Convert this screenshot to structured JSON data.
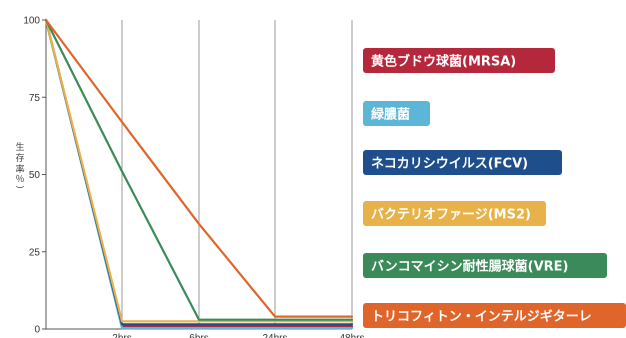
{
  "chart_data": {
    "type": "line",
    "title": "",
    "ylabel": "生存率(％)",
    "xlabel": "",
    "ylim": [
      0,
      100
    ],
    "yticks": [
      0,
      25,
      50,
      75,
      100
    ],
    "x": [
      "0",
      "2hrs",
      "6hrs",
      "24hrs",
      "48hrs"
    ],
    "x_tick_labels": [
      "2hrs",
      "6hrs",
      "24hrs",
      "48hrs"
    ],
    "grid": "vertical",
    "legend_position": "right",
    "series": [
      {
        "name": "黄色ブドウ球菌(MRSA)",
        "color": "#b5283c",
        "values": [
          100,
          0.8,
          0.8,
          0.8,
          0.8
        ]
      },
      {
        "name": "緑膿菌",
        "color": "#5bb6d8",
        "values": [
          100,
          0.3,
          0.3,
          0.3,
          0.3
        ]
      },
      {
        "name": "ネコカリシウイルス(FCV)",
        "color": "#1e4f8c",
        "values": [
          100,
          1.5,
          1.5,
          1.5,
          1.5
        ]
      },
      {
        "name": "バクテリオファージ(MS2)",
        "color": "#e8b24a",
        "values": [
          100,
          2.5,
          2.5,
          2.5,
          2.5
        ]
      },
      {
        "name": "バンコマイシン耐性腸球菌(VRE)",
        "color": "#3b8a5a",
        "values": [
          100,
          51,
          3,
          3,
          3
        ]
      },
      {
        "name": "トリコフィトン・インテルジギターレ",
        "color": "#e0652a",
        "values": [
          100,
          67,
          34,
          4,
          4
        ]
      }
    ]
  }
}
